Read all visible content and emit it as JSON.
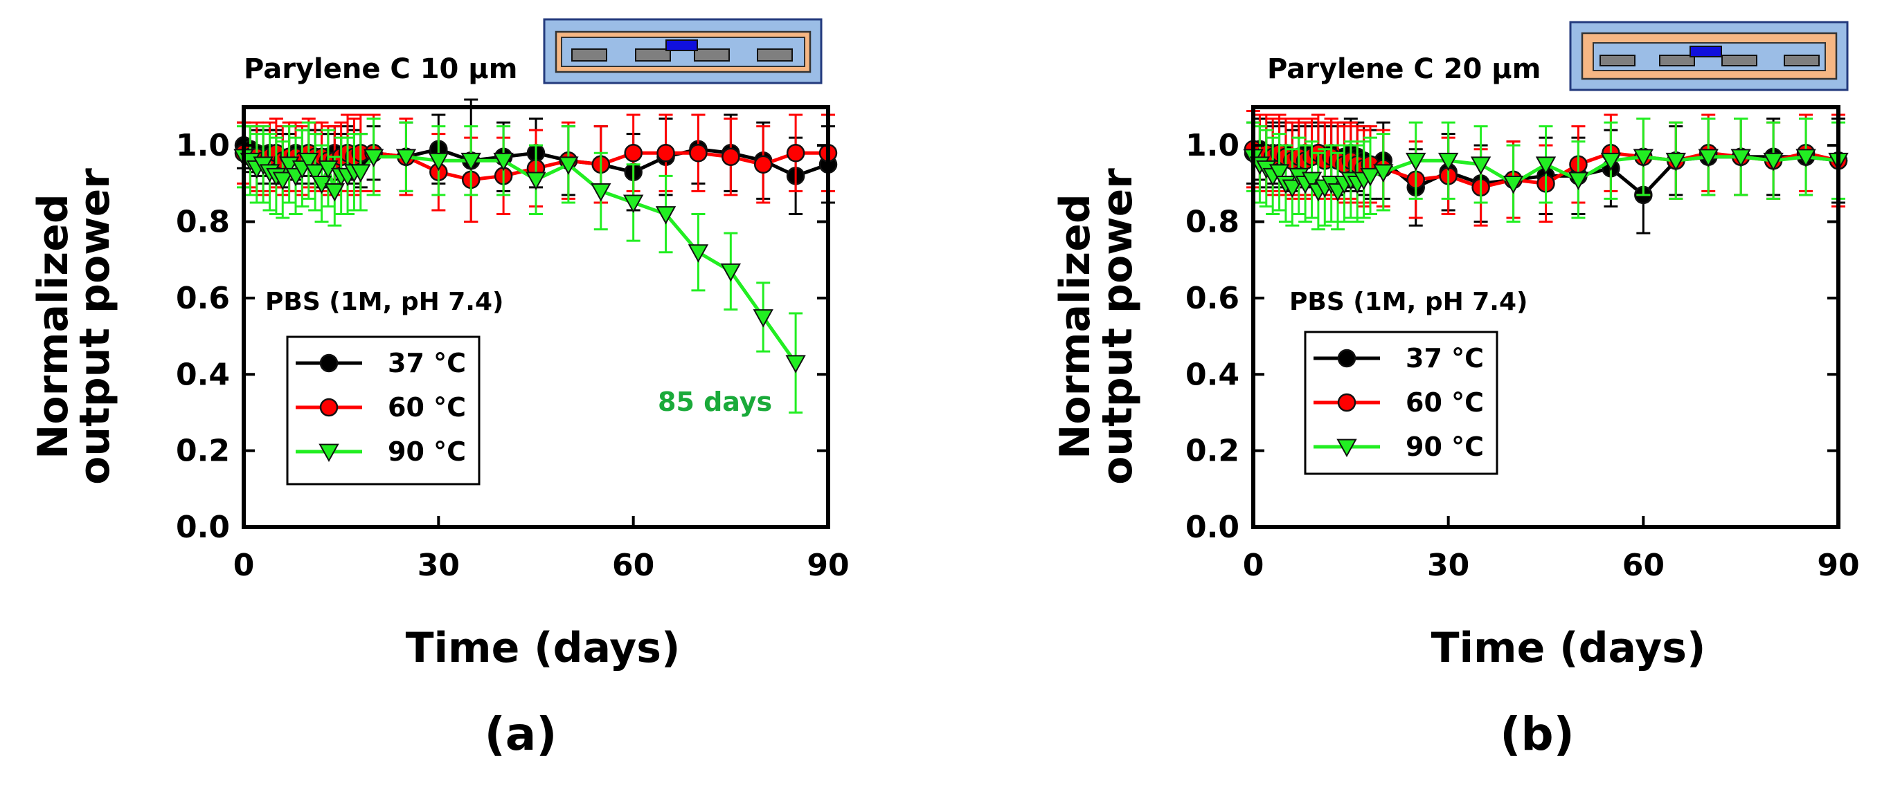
{
  "chart_data": [
    {
      "type": "line",
      "panel_label": "(a)",
      "title": "Parylene C 10 μm",
      "xlabel": "Time (days)",
      "ylabel_lines": [
        "Normalized",
        "output power"
      ],
      "xlim": [
        0,
        90
      ],
      "ylim": [
        0.0,
        1.1
      ],
      "xticks": [
        "0",
        "30",
        "60",
        "90"
      ],
      "yticks": [
        "0.0",
        "0.2",
        "0.4",
        "0.6",
        "0.8",
        "1.0"
      ],
      "grid": false,
      "legend_position": "lower-left",
      "condition_text": "PBS (1M, pH 7.4)",
      "annotation": "85 days",
      "series": [
        {
          "name": "37 °C",
          "color": "#000000",
          "marker": "circle",
          "x": [
            0,
            1,
            2,
            3,
            4,
            5,
            6,
            7,
            8,
            9,
            10,
            11,
            12,
            13,
            14,
            15,
            16,
            17,
            18,
            20,
            25,
            30,
            35,
            40,
            45,
            50,
            55,
            60,
            65,
            70,
            75,
            80,
            85,
            90
          ],
          "y": [
            1.0,
            0.99,
            0.98,
            0.97,
            0.98,
            0.97,
            0.96,
            0.97,
            0.98,
            0.97,
            0.98,
            0.97,
            0.96,
            0.97,
            0.98,
            0.97,
            0.98,
            0.97,
            0.96,
            0.98,
            0.97,
            0.99,
            0.96,
            0.97,
            0.98,
            0.96,
            0.95,
            0.93,
            0.97,
            0.99,
            0.98,
            0.96,
            0.92,
            0.95
          ],
          "error": [
            0.06,
            0.06,
            0.06,
            0.07,
            0.06,
            0.07,
            0.07,
            0.06,
            0.07,
            0.07,
            0.06,
            0.07,
            0.07,
            0.06,
            0.07,
            0.06,
            0.07,
            0.07,
            0.07,
            0.07,
            0.09,
            0.09,
            0.16,
            0.09,
            0.09,
            0.09,
            0.1,
            0.1,
            0.1,
            0.09,
            0.1,
            0.1,
            0.1,
            0.1
          ]
        },
        {
          "name": "60 °C",
          "color": "#ff0000",
          "marker": "circle",
          "x": [
            0,
            1,
            2,
            3,
            4,
            5,
            6,
            7,
            8,
            9,
            10,
            11,
            12,
            13,
            14,
            15,
            16,
            17,
            18,
            20,
            25,
            30,
            35,
            40,
            45,
            50,
            55,
            60,
            65,
            70,
            75,
            80,
            85,
            90
          ],
          "y": [
            0.98,
            0.97,
            0.97,
            0.96,
            0.97,
            0.98,
            0.96,
            0.97,
            0.97,
            0.96,
            0.98,
            0.97,
            0.97,
            0.96,
            0.96,
            0.97,
            0.98,
            0.97,
            0.98,
            0.98,
            0.97,
            0.93,
            0.91,
            0.92,
            0.94,
            0.96,
            0.95,
            0.98,
            0.98,
            0.98,
            0.97,
            0.95,
            0.98,
            0.98
          ],
          "error": [
            0.08,
            0.08,
            0.09,
            0.09,
            0.09,
            0.09,
            0.09,
            0.09,
            0.09,
            0.09,
            0.09,
            0.09,
            0.09,
            0.09,
            0.09,
            0.09,
            0.1,
            0.1,
            0.1,
            0.1,
            0.1,
            0.1,
            0.11,
            0.1,
            0.1,
            0.1,
            0.1,
            0.1,
            0.1,
            0.1,
            0.1,
            0.1,
            0.1,
            0.1
          ]
        },
        {
          "name": "90 °C",
          "color": "#22ee22",
          "marker": "triangle-down",
          "x": [
            0,
            1,
            2,
            3,
            4,
            5,
            6,
            7,
            8,
            9,
            10,
            11,
            12,
            13,
            14,
            15,
            16,
            17,
            18,
            20,
            25,
            30,
            35,
            40,
            45,
            50,
            55,
            60,
            65,
            70,
            75,
            80,
            85
          ],
          "y": [
            0.97,
            0.96,
            0.94,
            0.95,
            0.93,
            0.92,
            0.91,
            0.95,
            0.92,
            0.94,
            0.96,
            0.93,
            0.9,
            0.94,
            0.88,
            0.92,
            0.92,
            0.93,
            0.93,
            0.97,
            0.97,
            0.96,
            0.96,
            0.96,
            0.91,
            0.95,
            0.88,
            0.85,
            0.82,
            0.72,
            0.67,
            0.55,
            0.43
          ],
          "error": [
            0.08,
            0.09,
            0.09,
            0.1,
            0.1,
            0.1,
            0.1,
            0.1,
            0.1,
            0.1,
            0.1,
            0.1,
            0.1,
            0.1,
            0.09,
            0.1,
            0.1,
            0.1,
            0.1,
            0.1,
            0.09,
            0.09,
            0.09,
            0.09,
            0.09,
            0.1,
            0.1,
            0.1,
            0.1,
            0.1,
            0.1,
            0.09,
            0.13
          ]
        }
      ]
    },
    {
      "type": "line",
      "panel_label": "(b)",
      "title": "Parylene C 20 μm",
      "xlabel": "Time (days)",
      "ylabel_lines": [
        "Normalized",
        "output power"
      ],
      "xlim": [
        0,
        90
      ],
      "ylim": [
        0.0,
        1.1
      ],
      "xticks": [
        "0",
        "30",
        "60",
        "90"
      ],
      "yticks": [
        "0.0",
        "0.2",
        "0.4",
        "0.6",
        "0.8",
        "1.0"
      ],
      "grid": false,
      "legend_position": "lower-left",
      "condition_text": "PBS (1M, pH 7.4)",
      "annotation": "",
      "series": [
        {
          "name": "37 °C",
          "color": "#000000",
          "marker": "circle",
          "x": [
            0,
            1,
            2,
            3,
            4,
            5,
            6,
            7,
            8,
            9,
            10,
            11,
            12,
            13,
            14,
            15,
            16,
            17,
            18,
            20,
            25,
            30,
            35,
            40,
            45,
            50,
            55,
            60,
            65,
            70,
            75,
            80,
            85,
            90
          ],
          "y": [
            0.98,
            0.99,
            0.97,
            0.98,
            0.97,
            0.98,
            0.96,
            0.97,
            0.98,
            0.97,
            0.98,
            0.97,
            0.98,
            0.96,
            0.97,
            0.98,
            0.97,
            0.96,
            0.95,
            0.96,
            0.89,
            0.93,
            0.9,
            0.91,
            0.92,
            0.92,
            0.94,
            0.87,
            0.96,
            0.97,
            0.97,
            0.97,
            0.97,
            0.96
          ],
          "error": [
            0.08,
            0.08,
            0.08,
            0.08,
            0.08,
            0.08,
            0.08,
            0.08,
            0.08,
            0.08,
            0.08,
            0.08,
            0.09,
            0.09,
            0.09,
            0.09,
            0.09,
            0.09,
            0.09,
            0.1,
            0.1,
            0.1,
            0.1,
            0.1,
            0.1,
            0.1,
            0.1,
            0.1,
            0.09,
            0.1,
            0.1,
            0.1,
            0.1,
            0.11
          ]
        },
        {
          "name": "60 °C",
          "color": "#ff0000",
          "marker": "circle",
          "x": [
            0,
            1,
            2,
            3,
            4,
            5,
            6,
            7,
            8,
            9,
            10,
            11,
            12,
            13,
            14,
            15,
            16,
            17,
            18,
            20,
            25,
            30,
            35,
            40,
            45,
            50,
            55,
            60,
            65,
            70,
            75,
            80,
            85,
            90
          ],
          "y": [
            0.99,
            0.98,
            0.98,
            0.97,
            0.98,
            0.97,
            0.96,
            0.97,
            0.96,
            0.97,
            0.98,
            0.96,
            0.97,
            0.96,
            0.95,
            0.96,
            0.95,
            0.94,
            0.95,
            0.94,
            0.91,
            0.92,
            0.89,
            0.91,
            0.9,
            0.95,
            0.98,
            0.97,
            0.96,
            0.98,
            0.97,
            0.96,
            0.98,
            0.96
          ],
          "error": [
            0.1,
            0.1,
            0.1,
            0.1,
            0.1,
            0.1,
            0.1,
            0.1,
            0.1,
            0.1,
            0.1,
            0.1,
            0.1,
            0.1,
            0.1,
            0.1,
            0.1,
            0.1,
            0.1,
            0.1,
            0.1,
            0.1,
            0.1,
            0.1,
            0.1,
            0.1,
            0.1,
            0.1,
            0.1,
            0.1,
            0.1,
            0.1,
            0.1,
            0.12
          ]
        },
        {
          "name": "90 °C",
          "color": "#22ee22",
          "marker": "triangle-down",
          "x": [
            0,
            1,
            2,
            3,
            4,
            5,
            6,
            7,
            8,
            9,
            10,
            11,
            12,
            13,
            14,
            15,
            16,
            17,
            18,
            20,
            25,
            30,
            35,
            40,
            45,
            50,
            55,
            60,
            65,
            70,
            75,
            80,
            85,
            90
          ],
          "y": [
            0.97,
            0.95,
            0.94,
            0.92,
            0.93,
            0.9,
            0.89,
            0.92,
            0.9,
            0.91,
            0.88,
            0.89,
            0.9,
            0.88,
            0.9,
            0.91,
            0.9,
            0.91,
            0.92,
            0.93,
            0.96,
            0.96,
            0.95,
            0.9,
            0.95,
            0.91,
            0.96,
            0.97,
            0.96,
            0.97,
            0.97,
            0.96,
            0.97,
            0.96
          ],
          "error": [
            0.09,
            0.1,
            0.1,
            0.1,
            0.1,
            0.1,
            0.1,
            0.1,
            0.1,
            0.1,
            0.1,
            0.1,
            0.1,
            0.1,
            0.1,
            0.1,
            0.1,
            0.1,
            0.1,
            0.1,
            0.1,
            0.1,
            0.1,
            0.1,
            0.1,
            0.1,
            0.1,
            0.1,
            0.1,
            0.1,
            0.1,
            0.1,
            0.1,
            0.1
          ]
        }
      ]
    }
  ]
}
